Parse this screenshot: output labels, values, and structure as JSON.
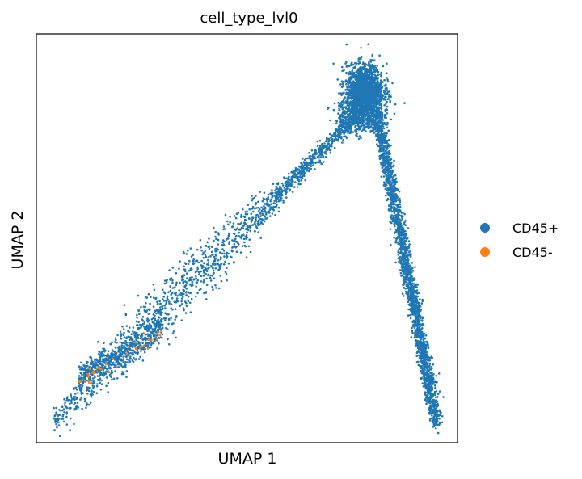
{
  "chart_data": {
    "type": "scatter",
    "title": "cell_type_lvl0",
    "xlabel": "UMAP 1",
    "ylabel": "UMAP 2",
    "x_ticks": false,
    "y_ticks": false,
    "grid": false,
    "legend_placement": "right-outside",
    "xlim": [
      0,
      100
    ],
    "ylim": [
      0,
      100
    ],
    "series": [
      {
        "name": "CD45+",
        "color": "#1f77b4",
        "clusters": [
          {
            "shape": "main_ridge",
            "x_range": [
              4,
              92
            ],
            "y_range": [
              5,
              90
            ]
          },
          {
            "shape": "peak",
            "center": [
              78,
              90
            ],
            "spread": [
              3,
              6
            ]
          },
          {
            "shape": "descending_tail",
            "x_range": [
              80,
              95
            ],
            "y_range": [
              5,
              70
            ]
          }
        ]
      },
      {
        "name": "CD45-",
        "color": "#ff7f0e",
        "clusters": [
          {
            "shape": "lower_left_band",
            "x_range": [
              10,
              30
            ],
            "y_range": [
              15,
              28
            ]
          }
        ]
      }
    ]
  }
}
